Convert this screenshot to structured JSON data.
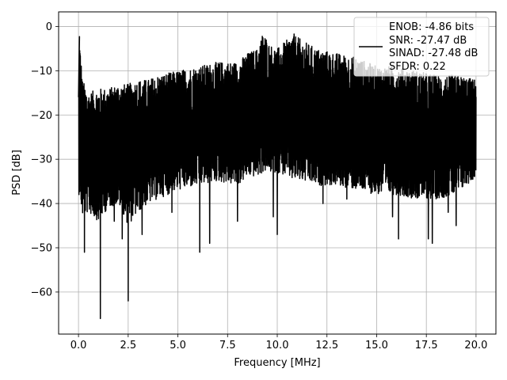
{
  "chart_data": {
    "type": "line",
    "xlabel": "Frequency [MHz]",
    "ylabel": "PSD [dB]",
    "xlim": [
      -1.0,
      21.0
    ],
    "ylim": [
      -69.5,
      3.3
    ],
    "x_ticks": [
      0.0,
      2.5,
      5.0,
      7.5,
      10.0,
      12.5,
      15.0,
      17.5,
      20.0
    ],
    "x_tick_labels": [
      "0.0",
      "2.5",
      "5.0",
      "7.5",
      "10.0",
      "12.5",
      "15.0",
      "17.5",
      "20.0"
    ],
    "y_ticks": [
      0,
      -10,
      -20,
      -30,
      -40,
      -50,
      -60
    ],
    "y_tick_labels": [
      "0",
      "−10",
      "−20",
      "−30",
      "−40",
      "−50",
      "−60"
    ],
    "grid": true,
    "legend_position": "top-right",
    "series": [
      {
        "name": "PSD",
        "color": "#000000",
        "legend_lines": [
          "ENOB: -4.86 bits",
          "SNR: -27.47 dB",
          "SINAD: -27.48 dB",
          "SFDR: 0.22"
        ],
        "x_range": [
          0.0,
          20.0
        ],
        "envelope": {
          "x": [
            0.0,
            0.05,
            0.2,
            0.5,
            1.0,
            1.5,
            2.0,
            2.5,
            3.0,
            3.5,
            4.0,
            5.0,
            6.0,
            7.0,
            8.0,
            8.5,
            9.0,
            9.3,
            9.6,
            10.0,
            10.5,
            10.8,
            11.2,
            12.0,
            13.0,
            14.0,
            15.0,
            16.0,
            17.0,
            18.0,
            19.0,
            20.0
          ],
          "upper": [
            -14,
            -2.3,
            -12,
            -15,
            -14,
            -14,
            -13,
            -13,
            -12,
            -12,
            -11,
            -10,
            -9,
            -8,
            -8,
            -6,
            -5,
            -1,
            -4,
            -5,
            -3,
            -1.5,
            -3,
            -5,
            -6,
            -7,
            -9,
            -9,
            -10,
            -11,
            -11,
            -12
          ],
          "lower": [
            -38,
            -38,
            -43,
            -42,
            -44,
            -41,
            -40,
            -45,
            -42,
            -40,
            -39,
            -37,
            -36,
            -35,
            -36,
            -34,
            -34,
            -33,
            -33,
            -33,
            -34,
            -35,
            -35,
            -36,
            -36,
            -37,
            -38,
            -38,
            -39,
            -39,
            -38,
            -34
          ]
        },
        "dips": [
          {
            "x": 0.3,
            "y": -51
          },
          {
            "x": 1.1,
            "y": -66
          },
          {
            "x": 1.8,
            "y": -44
          },
          {
            "x": 2.2,
            "y": -48
          },
          {
            "x": 2.5,
            "y": -62
          },
          {
            "x": 3.2,
            "y": -47
          },
          {
            "x": 4.7,
            "y": -42
          },
          {
            "x": 6.1,
            "y": -51
          },
          {
            "x": 6.6,
            "y": -49
          },
          {
            "x": 8.0,
            "y": -44
          },
          {
            "x": 9.8,
            "y": -43
          },
          {
            "x": 10.0,
            "y": -47
          },
          {
            "x": 12.3,
            "y": -40
          },
          {
            "x": 13.5,
            "y": -39
          },
          {
            "x": 15.8,
            "y": -43
          },
          {
            "x": 16.1,
            "y": -48
          },
          {
            "x": 17.6,
            "y": -48
          },
          {
            "x": 17.8,
            "y": -49
          },
          {
            "x": 18.6,
            "y": -42
          },
          {
            "x": 19.0,
            "y": -45
          }
        ]
      }
    ]
  }
}
